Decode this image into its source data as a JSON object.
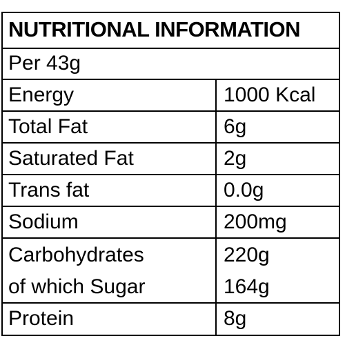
{
  "header": {
    "title": "NUTRITIONAL INFORMATION",
    "serving": "Per 43g"
  },
  "rows": [
    {
      "label": "Energy",
      "value": "1000 Kcal"
    },
    {
      "label": "Total Fat",
      "value": "6g"
    },
    {
      "label": "Saturated Fat",
      "value": "2g"
    },
    {
      "label": "Trans fat",
      "value": "0.0g"
    },
    {
      "label": "Sodium",
      "value": "200mg"
    },
    {
      "label": "Carbohydrates",
      "value": "220g",
      "sub_label": "of which Sugar",
      "sub_value": "164g"
    },
    {
      "label": "Protein",
      "value": "8g"
    }
  ]
}
